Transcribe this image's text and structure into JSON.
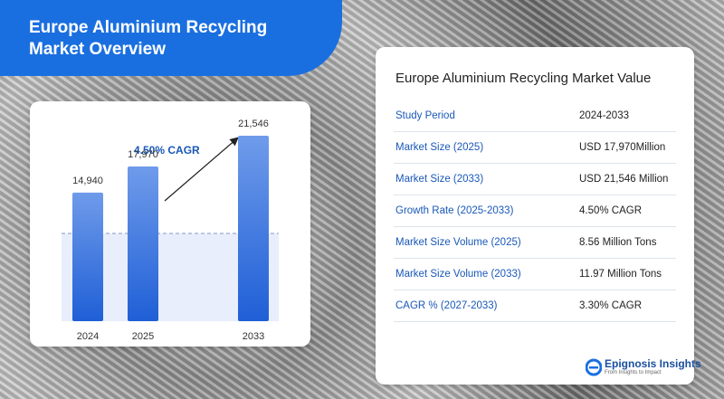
{
  "header": {
    "title_line1": "Europe Aluminium Recycling",
    "title_line2": "Market Overview"
  },
  "chart_data": {
    "type": "bar",
    "annotation": "4.50% CAGR",
    "categories": [
      "2024",
      "2025",
      "2033"
    ],
    "values": [
      14940,
      17970,
      21546
    ],
    "value_labels": [
      "14,940",
      "17,970",
      "21,546"
    ],
    "color": "#2f6fdc"
  },
  "table": {
    "title": "Europe Aluminium Recycling Market Value",
    "rows": [
      [
        "Study Period",
        "2024-2033"
      ],
      [
        "Market Size (2025)",
        "USD 17,970Million"
      ],
      [
        "Market Size (2033)",
        "USD 21,546 Million"
      ],
      [
        "Growth Rate (2025-2033)",
        "4.50% CAGR"
      ],
      [
        "Market Size Volume (2025)",
        "8.56 Million Tons"
      ],
      [
        "Market Size Volume (2033)",
        "11.97 Million Tons"
      ],
      [
        "CAGR % (2027-2033)",
        "3.30%  CAGR"
      ]
    ]
  },
  "brand": {
    "name": "Epignosis Insights",
    "tagline": "From Insights to Impact"
  }
}
